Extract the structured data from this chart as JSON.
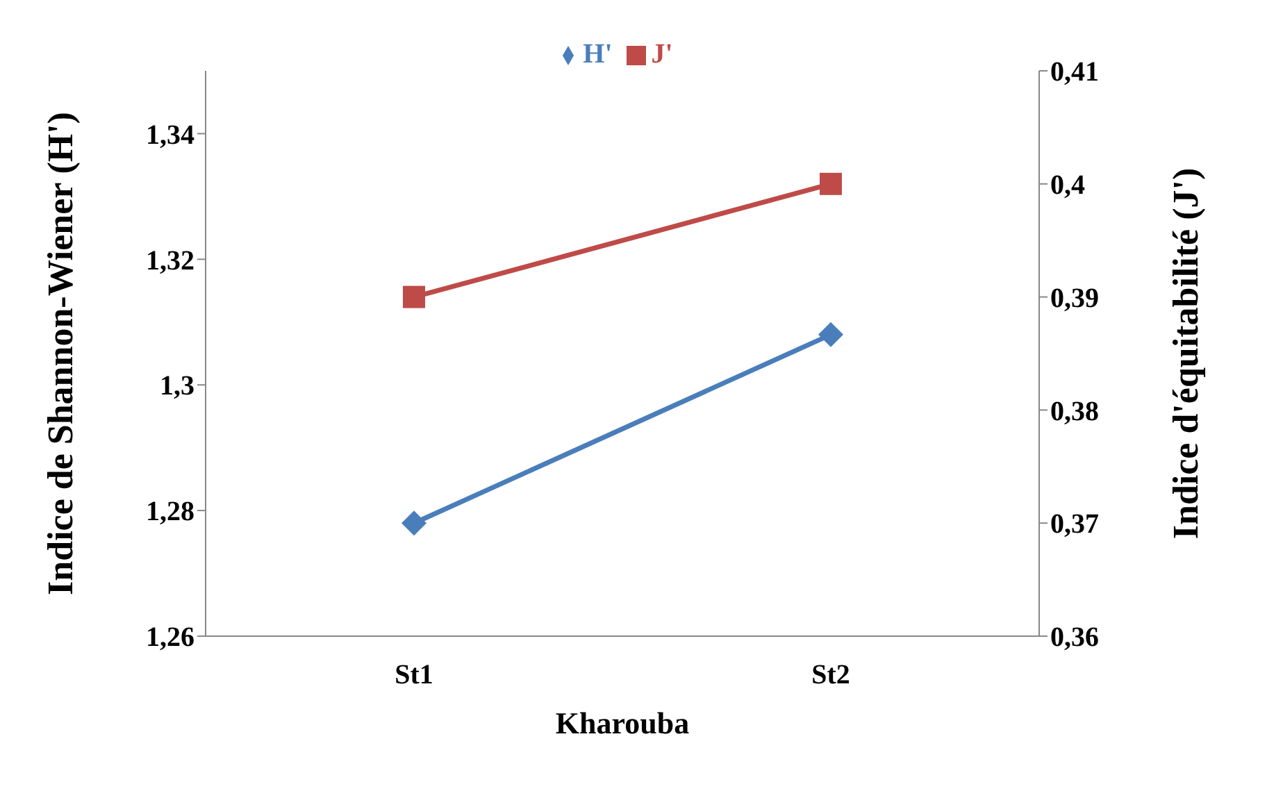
{
  "chart_data": {
    "type": "line",
    "xlabel": "Kharouba",
    "ylabel": "Indice de Shannon-Wiener (H')",
    "y2label": "Indice d'équitabilité (J')",
    "categories": [
      "St1",
      "St2"
    ],
    "series": [
      {
        "name": "H'",
        "color": "#4a7ebb",
        "values": [
          1.278,
          1.308
        ],
        "marker": "diamond"
      },
      {
        "name": "J'",
        "color": "#be4b48",
        "values": [
          0.39,
          0.4
        ],
        "marker": "square",
        "axis": "y2"
      }
    ],
    "ylim": [
      1.26,
      1.35
    ],
    "yticks": [
      {
        "value": 1.26,
        "label": "1,26"
      },
      {
        "value": 1.28,
        "label": "1,28"
      },
      {
        "value": 1.3,
        "label": "1,3"
      },
      {
        "value": 1.32,
        "label": "1,32"
      },
      {
        "value": 1.34,
        "label": "1,34"
      }
    ],
    "y2lim": [
      0.36,
      0.41
    ],
    "y2ticks": [
      {
        "value": 0.36,
        "label": "0,36"
      },
      {
        "value": 0.37,
        "label": "0,37"
      },
      {
        "value": 0.38,
        "label": "0,38"
      },
      {
        "value": 0.39,
        "label": "0,39"
      },
      {
        "value": 0.4,
        "label": "0,4"
      },
      {
        "value": 0.41,
        "label": "0,41"
      }
    ],
    "legend": "top",
    "grid": false
  }
}
